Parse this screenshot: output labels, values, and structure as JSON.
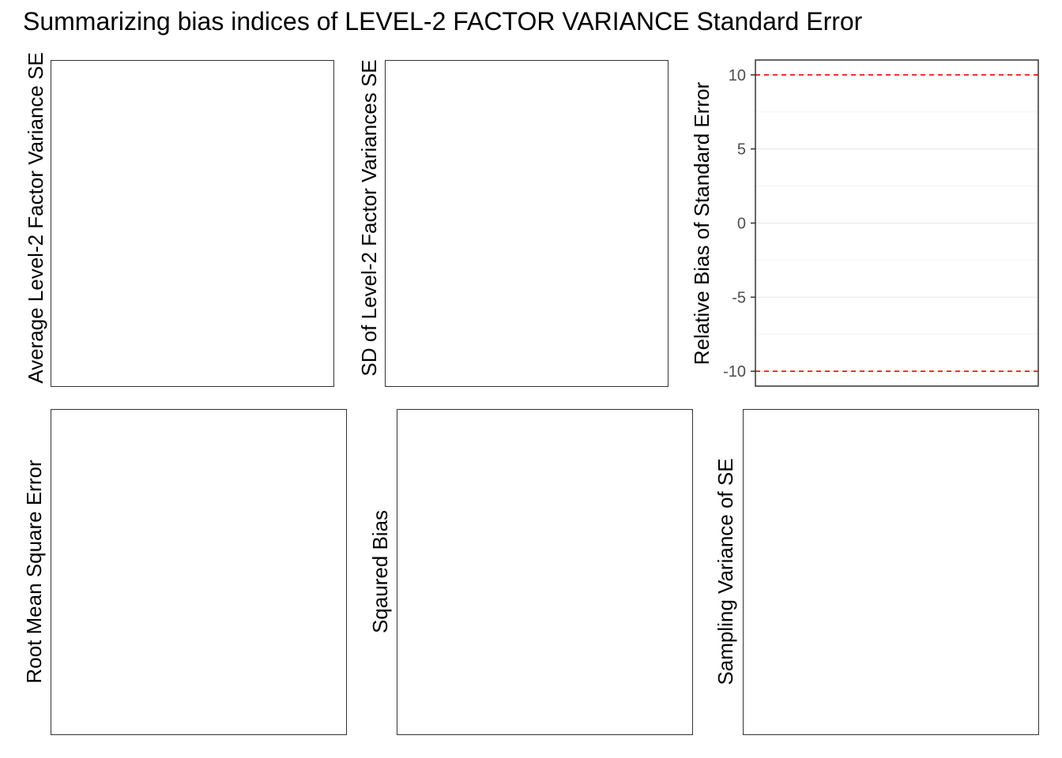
{
  "title": "Summarizing bias indices of LEVEL-2 FACTOR VARIANCE Standard Error",
  "panels": {
    "avg_se": {
      "ylabel": "Average Level-2 Factor Variance SE"
    },
    "sd_var": {
      "ylabel": "SD of Level-2 Factor Variances SE"
    },
    "rel_bias": {
      "ylabel": "Relative Bias of Standard Error"
    },
    "rmse": {
      "ylabel": "Root Mean Square Error"
    },
    "sq_bias": {
      "ylabel": "Sqaured Bias"
    },
    "samp_var": {
      "ylabel": "Sampling Variance of SE"
    }
  },
  "chart_data": {
    "type": "line",
    "title": "Summarizing bias indices of LEVEL-2 FACTOR VARIANCE Standard Error",
    "panel": "Relative Bias of Standard Error",
    "ylabel": "Relative Bias of Standard Error",
    "ylim": [
      -11,
      11
    ],
    "yticks": [
      -10,
      -5,
      0,
      5,
      10
    ],
    "reference_lines": [
      {
        "y": 10,
        "color": "#ff0000",
        "style": "dashed"
      },
      {
        "y": -10,
        "color": "#ff0000",
        "style": "dashed"
      }
    ],
    "grid": true,
    "series": []
  }
}
